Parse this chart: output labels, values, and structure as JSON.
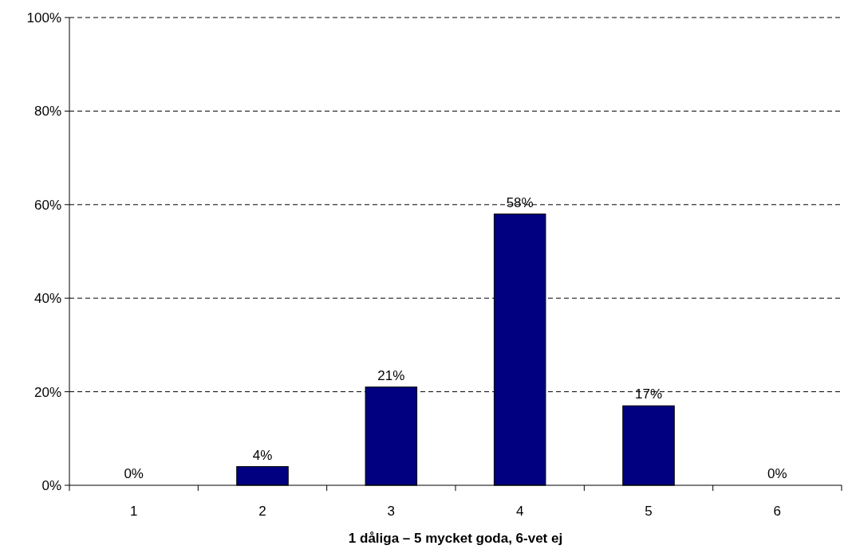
{
  "chart_data": {
    "type": "bar",
    "xlabel": "1 dåliga – 5 mycket goda, 6-vet ej",
    "categories": [
      "1",
      "2",
      "3",
      "4",
      "5",
      "6"
    ],
    "values": [
      0,
      4,
      21,
      58,
      17,
      0
    ],
    "value_labels": [
      "0%",
      "4%",
      "21%",
      "58%",
      "17%",
      "0%"
    ],
    "color": "#000080",
    "ylim": [
      0,
      100
    ],
    "yticks": [
      {
        "value": 0,
        "label": "0%"
      },
      {
        "value": 20,
        "label": "20%"
      },
      {
        "value": 40,
        "label": "40%"
      },
      {
        "value": 60,
        "label": "60%"
      },
      {
        "value": 80,
        "label": "80%"
      },
      {
        "value": 100,
        "label": "100%"
      }
    ],
    "grid": "y"
  }
}
